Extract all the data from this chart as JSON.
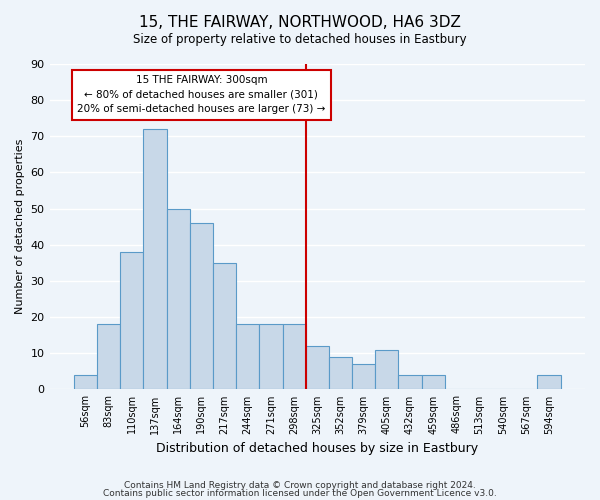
{
  "title": "15, THE FAIRWAY, NORTHWOOD, HA6 3DZ",
  "subtitle": "Size of property relative to detached houses in Eastbury",
  "xlabel": "Distribution of detached houses by size in Eastbury",
  "ylabel": "Number of detached properties",
  "bar_labels": [
    "56sqm",
    "83sqm",
    "110sqm",
    "137sqm",
    "164sqm",
    "190sqm",
    "217sqm",
    "244sqm",
    "271sqm",
    "298sqm",
    "325sqm",
    "352sqm",
    "379sqm",
    "405sqm",
    "432sqm",
    "459sqm",
    "486sqm",
    "513sqm",
    "540sqm",
    "567sqm",
    "594sqm"
  ],
  "bar_values": [
    4,
    18,
    38,
    72,
    50,
    46,
    35,
    18,
    18,
    18,
    12,
    9,
    7,
    11,
    4,
    4,
    0,
    0,
    0,
    0,
    4
  ],
  "bar_color": "#c8d8e8",
  "bar_edge_color": "#5a9ac8",
  "vline_x": 9.5,
  "vline_color": "#cc0000",
  "annotation_title": "15 THE FAIRWAY: 300sqm",
  "annotation_line1": "← 80% of detached houses are smaller (301)",
  "annotation_line2": "20% of semi-detached houses are larger (73) →",
  "annotation_box_color": "#ffffff",
  "annotation_box_edge": "#cc0000",
  "ylim": [
    0,
    90
  ],
  "yticks": [
    0,
    10,
    20,
    30,
    40,
    50,
    60,
    70,
    80,
    90
  ],
  "footer1": "Contains HM Land Registry data © Crown copyright and database right 2024.",
  "footer2": "Contains public sector information licensed under the Open Government Licence v3.0.",
  "background_color": "#eef4fa",
  "grid_color": "#ffffff"
}
